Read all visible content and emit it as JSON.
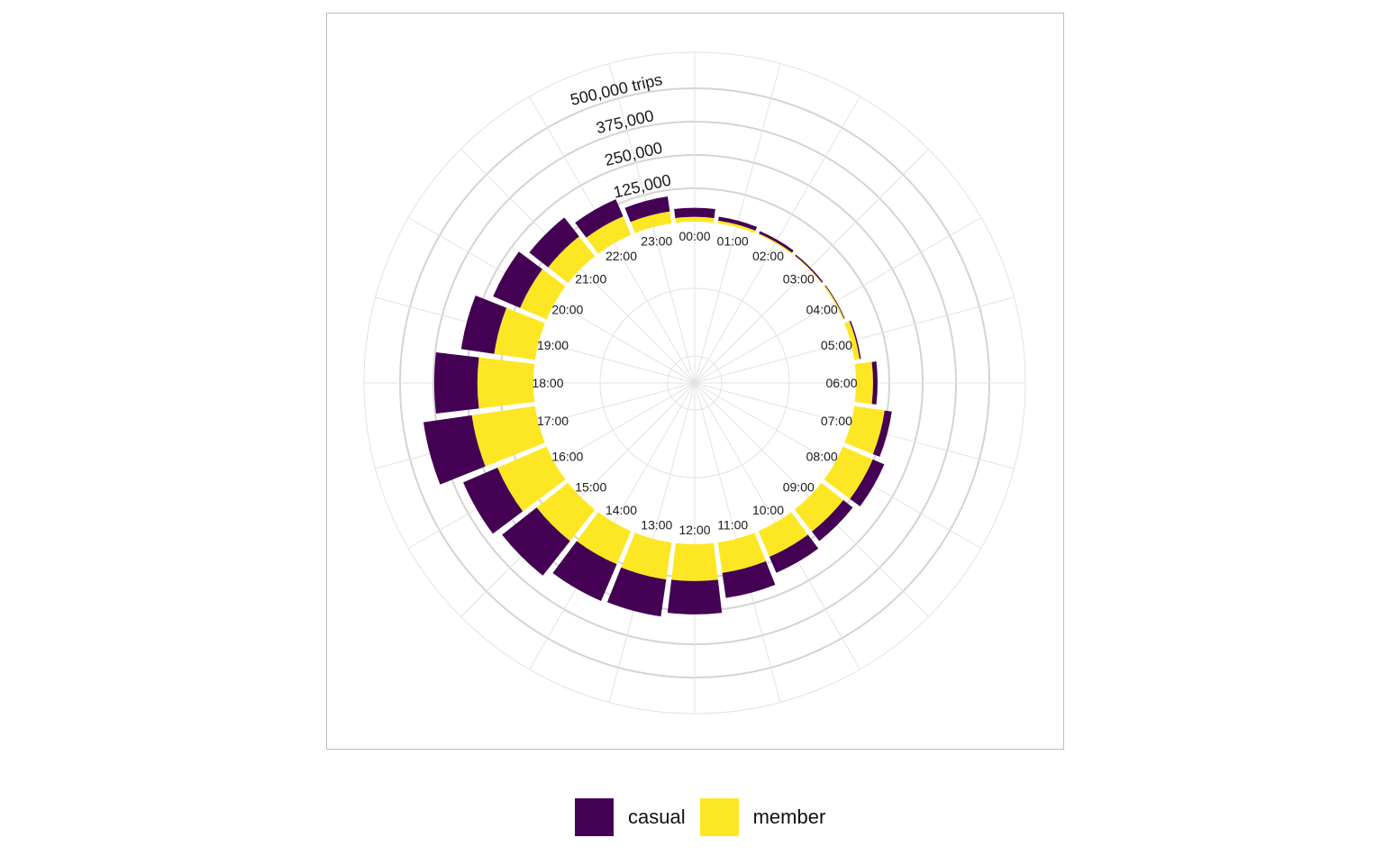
{
  "chart_data": {
    "type": "bar",
    "subtype": "polar-stacked",
    "categories": [
      "00:00",
      "01:00",
      "02:00",
      "03:00",
      "04:00",
      "05:00",
      "06:00",
      "07:00",
      "08:00",
      "09:00",
      "10:00",
      "11:00",
      "12:00",
      "13:00",
      "14:00",
      "15:00",
      "16:00",
      "17:00",
      "18:00",
      "19:00",
      "20:00",
      "21:00",
      "22:00",
      "23:00"
    ],
    "series": [
      {
        "name": "member",
        "color": "#FDE725",
        "values": [
          18000,
          10000,
          5000,
          3000,
          5000,
          20000,
          64000,
          115000,
          122000,
          105000,
          105000,
          115000,
          138000,
          140000,
          135000,
          150000,
          200000,
          240000,
          210000,
          155000,
          108000,
          95000,
          75000,
          45000
        ]
      },
      {
        "name": "casual",
        "color": "#440154",
        "values": [
          34000,
          15000,
          10000,
          5000,
          3000,
          5000,
          17000,
          27000,
          47000,
          45000,
          65000,
          95000,
          125000,
          140000,
          150000,
          165000,
          140000,
          183000,
          162000,
          125000,
          110000,
          90000,
          70000,
          57000
        ]
      }
    ],
    "radial_ticks": [
      125000,
      250000,
      375000,
      500000
    ],
    "radial_tick_labels": [
      "125,000",
      "250,000",
      "375,000",
      "500,000 trips"
    ],
    "ylim": [
      0,
      500000
    ],
    "legend": {
      "position": "bottom",
      "entries": [
        "casual",
        "member"
      ]
    },
    "grid": true
  }
}
